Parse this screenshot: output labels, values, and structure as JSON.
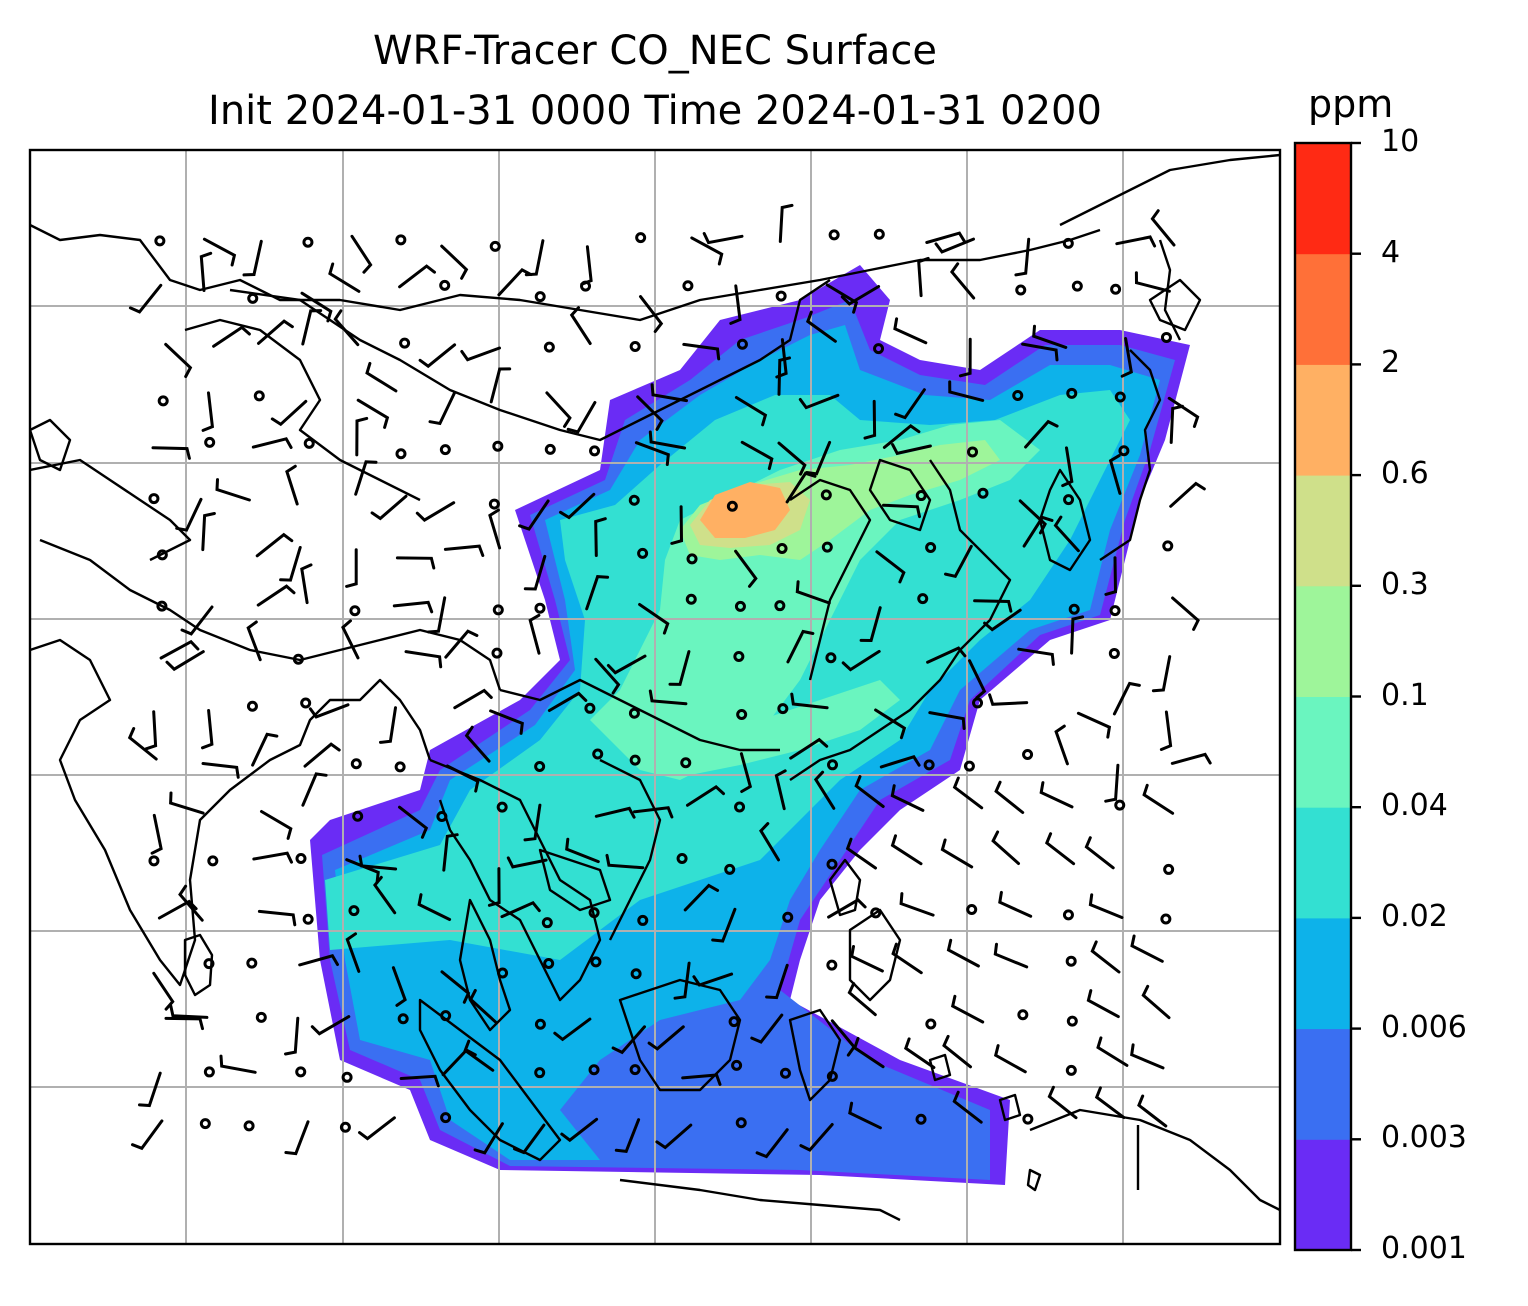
{
  "title": {
    "line1": "WRF-Tracer CO_NEC Surface",
    "line2": "Init 2024-01-31 0000 Time 2024-01-31 0200"
  },
  "colorbar": {
    "unit": "ppm",
    "levels": [
      "0.001",
      "0.003",
      "0.006",
      "0.02",
      "0.04",
      "0.1",
      "0.3",
      "0.6",
      "2",
      "4",
      "10"
    ],
    "colors": [
      "#6a2cf5",
      "#3a6ff2",
      "#0db2ea",
      "#33e0d2",
      "#6af5bf",
      "#9ef59a",
      "#cfe08a",
      "#ffb063",
      "#ff7038",
      "#ff2a14"
    ]
  },
  "map": {
    "field_colors": {
      "c1": "#6a2cf5",
      "c2": "#3a6ff2",
      "c3": "#0db2ea",
      "c4": "#33e0d2",
      "c5": "#6af5bf",
      "c6": "#9ef59a",
      "c7": "#cfe08a",
      "c8": "#ffb063"
    },
    "gridline_color": "#b0b0b0",
    "coastline_color": "#000000",
    "wind_barb_color": "#000000"
  }
}
